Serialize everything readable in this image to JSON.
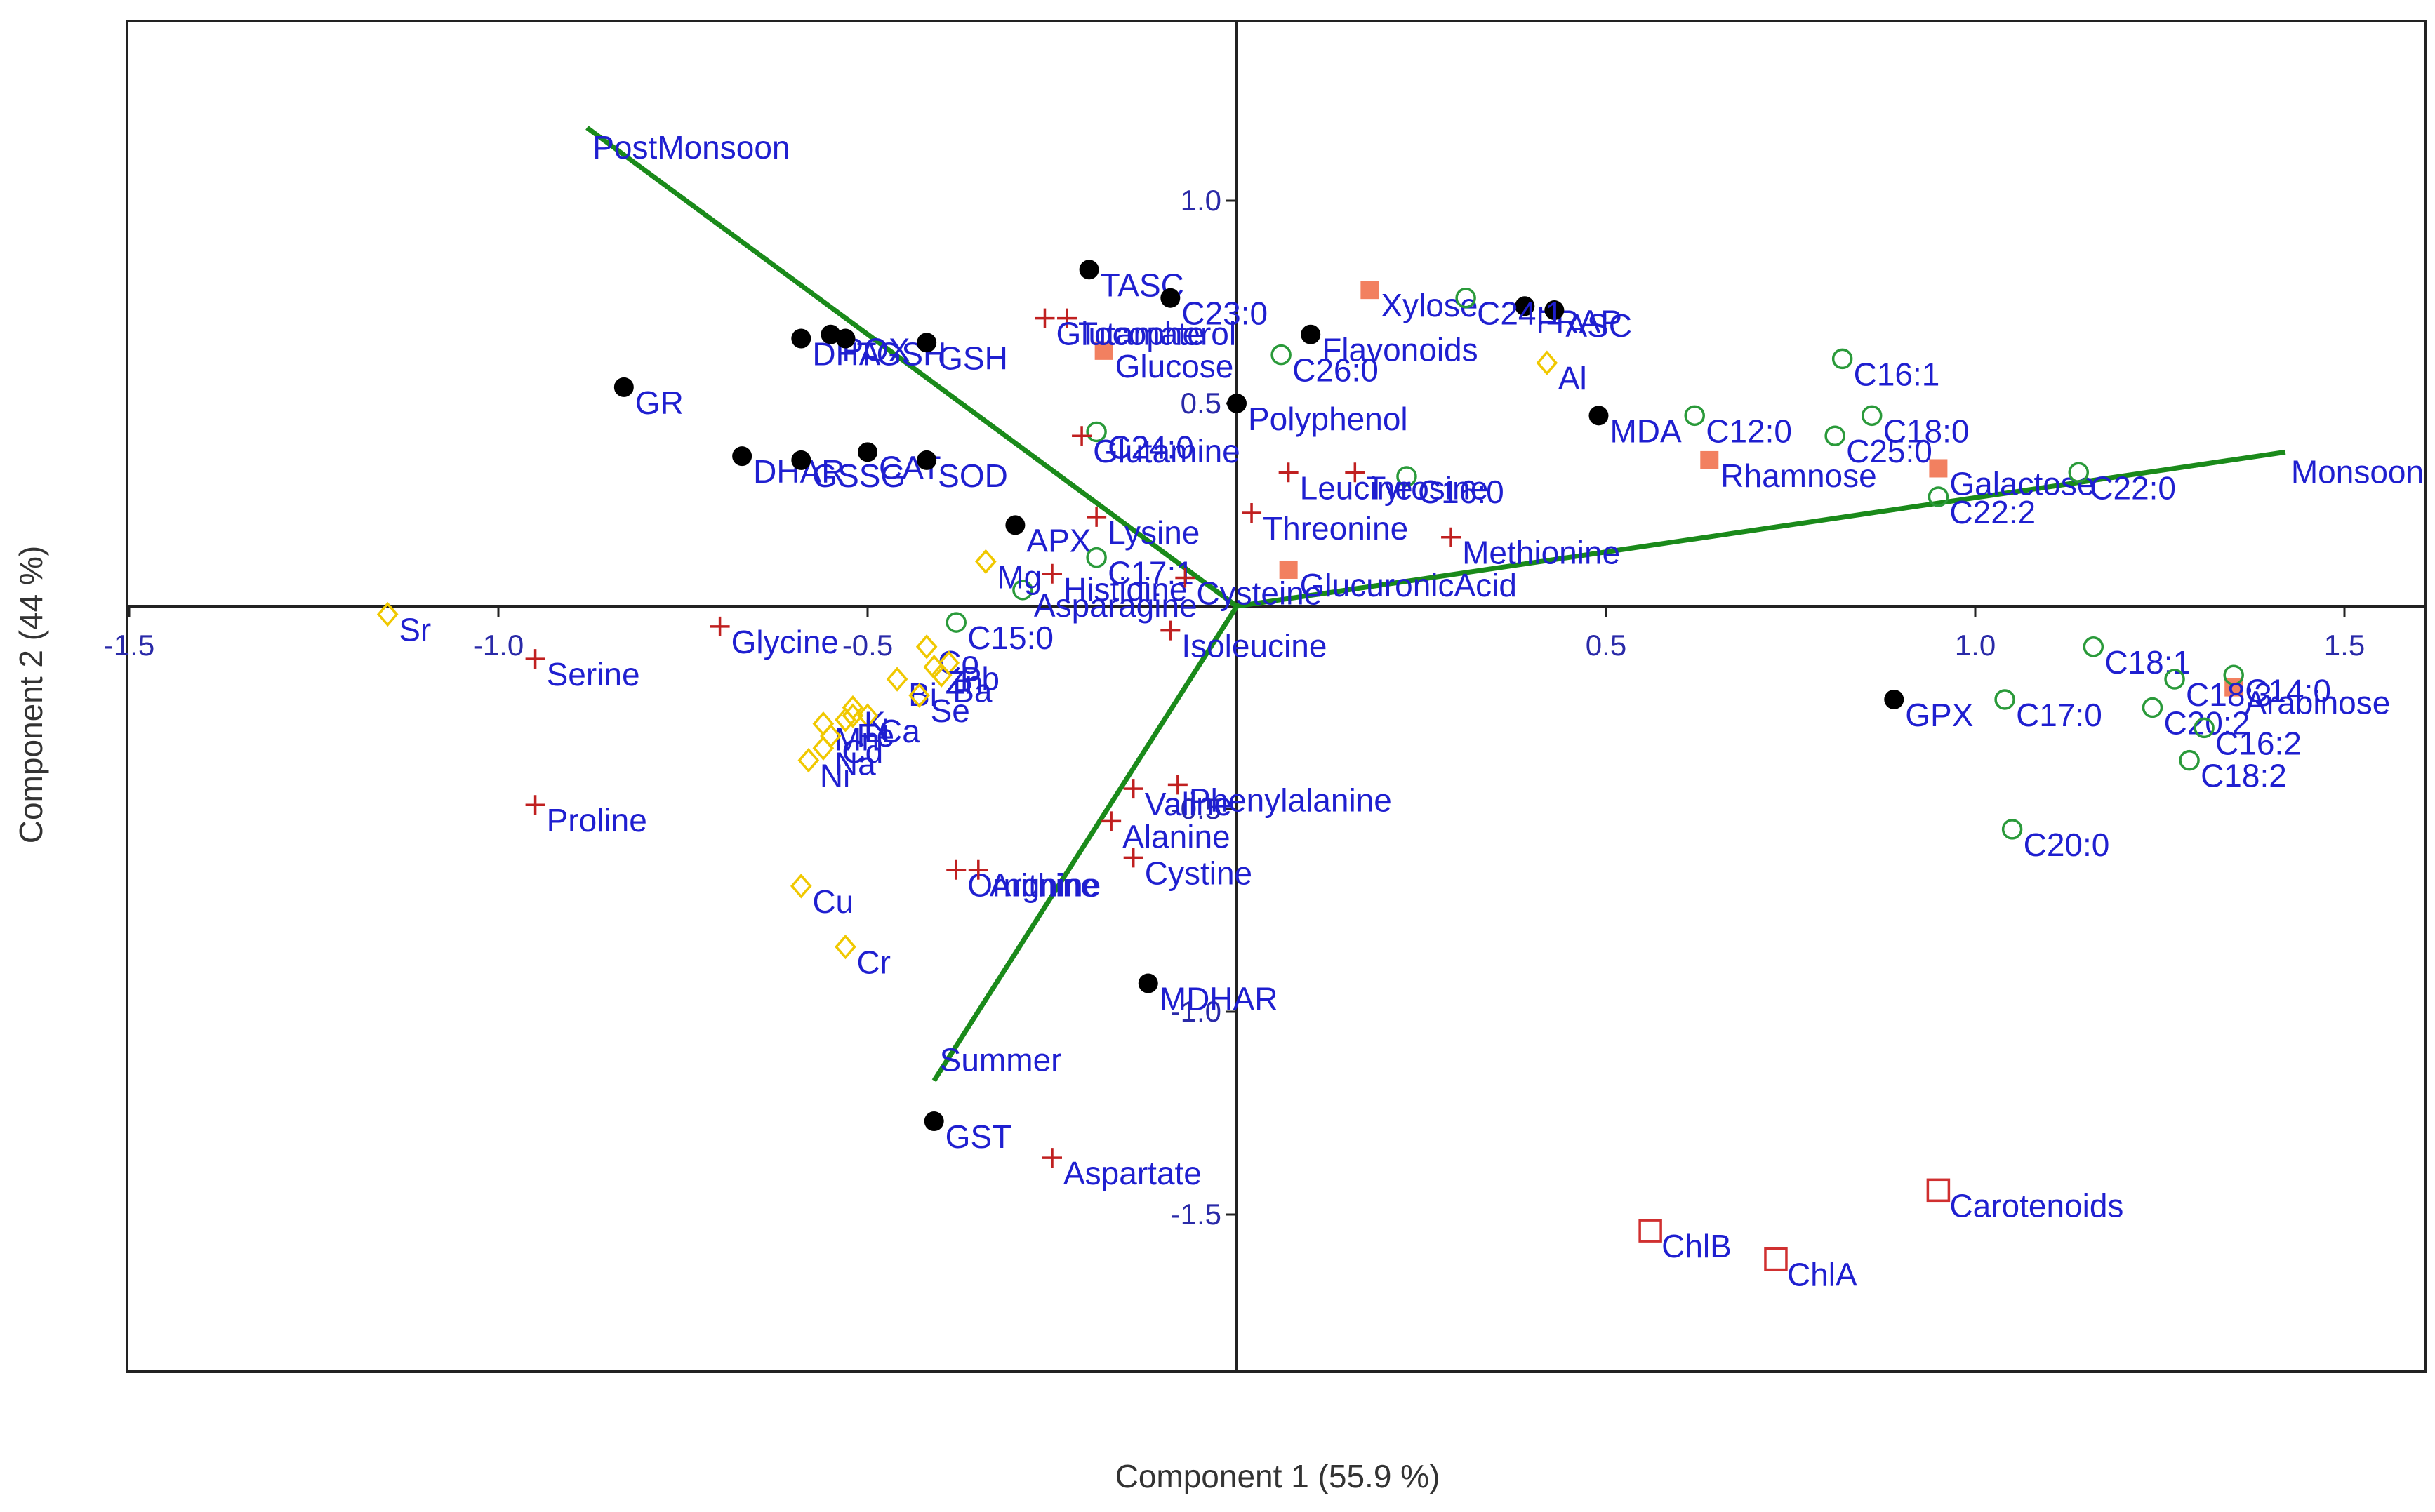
{
  "chart_data": {
    "type": "scatter",
    "xlabel": "Component 1 (55.9 %)",
    "ylabel": "Component 2 (44 %)",
    "xlim": [
      -1.5,
      1.6
    ],
    "ylim": [
      -1.7,
      1.3
    ],
    "xticks": [
      -1.5,
      -1.0,
      -0.5,
      0.5,
      1.0,
      1.5
    ],
    "xtick_labels": [
      "-1.5",
      "-1.0",
      "-0.5",
      "0.5",
      "1.0",
      "1.5"
    ],
    "yticks": [
      1.0,
      0.5,
      -0.5,
      -1.0,
      -1.5
    ],
    "ytick_labels": [
      "1.0",
      "0.5",
      "-0.5",
      "-1.0",
      "-1.5"
    ],
    "biplot_vectors": [
      {
        "name": "PostMonsoon",
        "x": -0.88,
        "y": 1.18
      },
      {
        "name": "Monsoon",
        "x": 1.42,
        "y": 0.38
      },
      {
        "name": "Summer",
        "x": -0.41,
        "y": -1.17
      }
    ],
    "marker_colors": {
      "enzyme": "#000000",
      "sugar": "#f28060",
      "fatty_acid": "#2a9a3a",
      "amino_acid": "#c02020",
      "element": "#f0c800",
      "pigment": "#d03030",
      "vector": "#1a8a1a"
    },
    "series": [
      {
        "marker": "filled-circle",
        "points": [
          {
            "label": "TASC",
            "x": -0.2,
            "y": 0.83
          },
          {
            "label": "C23:0",
            "x": -0.09,
            "y": 0.76
          },
          {
            "label": "Flavonoids",
            "x": 0.1,
            "y": 0.67
          },
          {
            "label": "FRAP",
            "x": 0.39,
            "y": 0.74
          },
          {
            "label": "ASC",
            "x": 0.43,
            "y": 0.73
          },
          {
            "label": "POX",
            "x": -0.55,
            "y": 0.67
          },
          {
            "label": "DHA",
            "x": -0.59,
            "y": 0.66
          },
          {
            "label": "TGSH",
            "x": -0.53,
            "y": 0.66
          },
          {
            "label": "GSH",
            "x": -0.42,
            "y": 0.65
          },
          {
            "label": "GR",
            "x": -0.83,
            "y": 0.54
          },
          {
            "label": "Polyphenol",
            "x": 0.0,
            "y": 0.5
          },
          {
            "label": "MDA",
            "x": 0.49,
            "y": 0.47
          },
          {
            "label": "CAT",
            "x": -0.5,
            "y": 0.38
          },
          {
            "label": "DHAR",
            "x": -0.67,
            "y": 0.37
          },
          {
            "label": "GSSG",
            "x": -0.59,
            "y": 0.36
          },
          {
            "label": "SOD",
            "x": -0.42,
            "y": 0.36
          },
          {
            "label": "APX",
            "x": -0.3,
            "y": 0.2
          },
          {
            "label": "GPX",
            "x": 0.89,
            "y": -0.23
          },
          {
            "label": "MDHAR",
            "x": -0.12,
            "y": -0.93
          },
          {
            "label": "GST",
            "x": -0.41,
            "y": -1.27
          }
        ]
      },
      {
        "marker": "filled-square",
        "points": [
          {
            "label": "Xylose",
            "x": 0.18,
            "y": 0.78
          },
          {
            "label": "Glucose",
            "x": -0.18,
            "y": 0.63
          },
          {
            "label": "Rhamnose",
            "x": 0.64,
            "y": 0.36
          },
          {
            "label": "Galactose",
            "x": 0.95,
            "y": 0.34
          },
          {
            "label": "GlucuronicAcid",
            "x": 0.07,
            "y": 0.09
          },
          {
            "label": "Arabinose",
            "x": 1.35,
            "y": -0.2
          }
        ]
      },
      {
        "marker": "open-circle",
        "points": [
          {
            "label": "C24:1",
            "x": 0.31,
            "y": 0.76
          },
          {
            "label": "C26:0",
            "x": 0.06,
            "y": 0.62
          },
          {
            "label": "C16:1",
            "x": 0.82,
            "y": 0.61
          },
          {
            "label": "C12:0",
            "x": 0.62,
            "y": 0.47
          },
          {
            "label": "C18:0",
            "x": 0.86,
            "y": 0.47
          },
          {
            "label": "C25:0",
            "x": 0.81,
            "y": 0.42
          },
          {
            "label": "C24:0",
            "x": -0.19,
            "y": 0.43
          },
          {
            "label": "C16:0",
            "x": 0.23,
            "y": 0.32
          },
          {
            "label": "C22:0",
            "x": 1.14,
            "y": 0.33
          },
          {
            "label": "C22:2",
            "x": 0.95,
            "y": 0.27
          },
          {
            "label": "C17:1",
            "x": -0.19,
            "y": 0.12
          },
          {
            "label": "Asparagine",
            "x": -0.29,
            "y": 0.04
          },
          {
            "label": "C15:0",
            "x": -0.38,
            "y": -0.04
          },
          {
            "label": "C18:1",
            "x": 1.16,
            "y": -0.1
          },
          {
            "label": "C14:0",
            "x": 1.35,
            "y": -0.17
          },
          {
            "label": "C18:3",
            "x": 1.27,
            "y": -0.18
          },
          {
            "label": "C17:0",
            "x": 1.04,
            "y": -0.23
          },
          {
            "label": "C20:2",
            "x": 1.24,
            "y": -0.25
          },
          {
            "label": "C16:2",
            "x": 1.31,
            "y": -0.3
          },
          {
            "label": "C18:2",
            "x": 1.29,
            "y": -0.38
          },
          {
            "label": "C20:0",
            "x": 1.05,
            "y": -0.55
          }
        ]
      },
      {
        "marker": "plus",
        "points": [
          {
            "label": "Tocopherol",
            "x": -0.23,
            "y": 0.71
          },
          {
            "label": "Glutamate",
            "x": -0.26,
            "y": 0.71
          },
          {
            "label": "Glutamine",
            "x": -0.21,
            "y": 0.42
          },
          {
            "label": "Tyrosine",
            "x": 0.16,
            "y": 0.33
          },
          {
            "label": "Leucine",
            "x": 0.07,
            "y": 0.33
          },
          {
            "label": "Lysine",
            "x": -0.19,
            "y": 0.22
          },
          {
            "label": "Threonine",
            "x": 0.02,
            "y": 0.23
          },
          {
            "label": "Methionine",
            "x": 0.29,
            "y": 0.17
          },
          {
            "label": "Histidine",
            "x": -0.25,
            "y": 0.08
          },
          {
            "label": "Cysteine",
            "x": -0.07,
            "y": 0.07
          },
          {
            "label": "Isoleucine",
            "x": -0.09,
            "y": -0.06
          },
          {
            "label": "Glycine",
            "x": -0.7,
            "y": -0.05
          },
          {
            "label": "Serine",
            "x": -0.95,
            "y": -0.13
          },
          {
            "label": "Proline",
            "x": -0.95,
            "y": -0.49
          },
          {
            "label": "Valine",
            "x": -0.14,
            "y": -0.45
          },
          {
            "label": "Phenylalanine",
            "x": -0.08,
            "y": -0.44
          },
          {
            "label": "Alanine",
            "x": -0.17,
            "y": -0.53
          },
          {
            "label": "Cystine",
            "x": -0.14,
            "y": -0.62
          },
          {
            "label": "Ornithine",
            "x": -0.38,
            "y": -0.65
          },
          {
            "label": "Argnine",
            "x": -0.35,
            "y": -0.65
          },
          {
            "label": "Aspartate",
            "x": -0.25,
            "y": -1.36
          }
        ]
      },
      {
        "marker": "open-diamond",
        "points": [
          {
            "label": "Al",
            "x": 0.42,
            "y": 0.6
          },
          {
            "label": "Mg",
            "x": -0.34,
            "y": 0.11
          },
          {
            "label": "Sr",
            "x": -1.15,
            "y": -0.02
          },
          {
            "label": "Co",
            "x": -0.42,
            "y": -0.1
          },
          {
            "label": "Pb",
            "x": -0.39,
            "y": -0.14
          },
          {
            "label": "Zn",
            "x": -0.41,
            "y": -0.15
          },
          {
            "label": "Ba",
            "x": -0.4,
            "y": -0.17
          },
          {
            "label": "Bi",
            "x": -0.46,
            "y": -0.18
          },
          {
            "label": "Se",
            "x": -0.43,
            "y": -0.22
          },
          {
            "label": "K",
            "x": -0.52,
            "y": -0.25
          },
          {
            "label": "Ca",
            "x": -0.5,
            "y": -0.27
          },
          {
            "label": "Li",
            "x": -0.52,
            "y": -0.27
          },
          {
            "label": "Fe",
            "x": -0.53,
            "y": -0.28
          },
          {
            "label": "Mn",
            "x": -0.56,
            "y": -0.29
          },
          {
            "label": "Cd",
            "x": -0.55,
            "y": -0.32
          },
          {
            "label": "Na",
            "x": -0.56,
            "y": -0.35
          },
          {
            "label": "Ni",
            "x": -0.58,
            "y": -0.38
          },
          {
            "label": "Cu",
            "x": -0.59,
            "y": -0.69
          },
          {
            "label": "Cr",
            "x": -0.53,
            "y": -0.84
          }
        ]
      },
      {
        "marker": "open-square",
        "points": [
          {
            "label": "Carotenoids",
            "x": 0.95,
            "y": -1.44
          },
          {
            "label": "ChlB",
            "x": 0.56,
            "y": -1.54
          },
          {
            "label": "ChlA",
            "x": 0.73,
            "y": -1.61
          }
        ]
      }
    ]
  }
}
